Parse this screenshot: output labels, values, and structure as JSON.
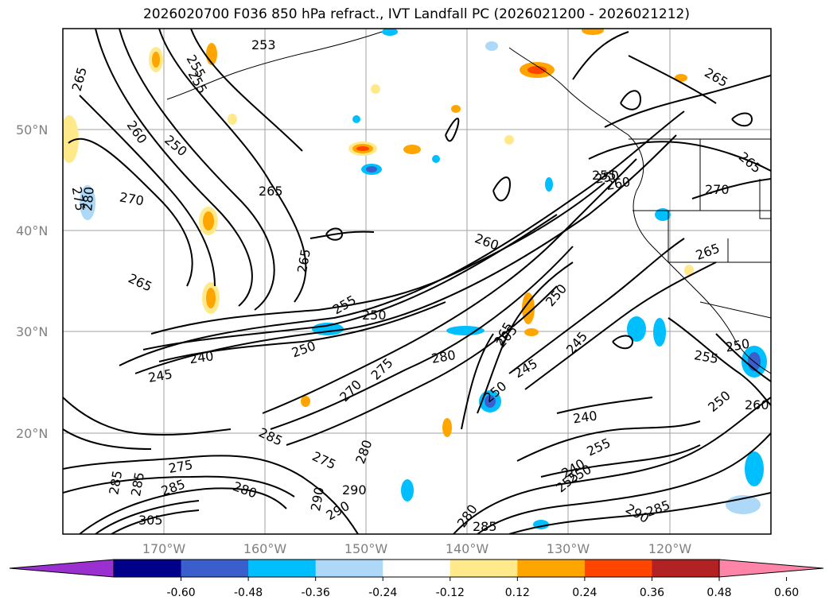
{
  "title": "2026020700 F036 850 hPa refract., IVT Landfall PC (2026021200 - 2026021212)",
  "lat_labels": [
    "50°N",
    "40°N",
    "30°N",
    "20°N"
  ],
  "lon_labels": [
    "170°W",
    "160°W",
    "150°W",
    "140°W",
    "130°W",
    "120°W"
  ],
  "colorbar": {
    "colors": [
      "#9b30d0",
      "#00008b",
      "#3a5fcd",
      "#00bfff",
      "#add8f7",
      "#ffffff",
      "#ffe98a",
      "#ffa500",
      "#ff4500",
      "#b22222",
      "#ff85a8"
    ],
    "tick_labels": [
      "-0.60",
      "-0.48",
      "-0.36",
      "-0.24",
      "-0.12",
      "0.12",
      "0.24",
      "0.36",
      "0.48",
      "0.60"
    ]
  },
  "contour_labels": [
    "253",
    "255",
    "265",
    "265",
    "260",
    "250",
    "255",
    "275",
    "280",
    "270",
    "250",
    "265",
    "265",
    "265",
    "240",
    "245",
    "240",
    "250",
    "255",
    "250",
    "250",
    "275",
    "270",
    "260",
    "255",
    "260",
    "270",
    "265",
    "265",
    "280",
    "265",
    "250",
    "245",
    "245",
    "250",
    "255",
    "250",
    "255",
    "260",
    "240",
    "255",
    "250",
    "285",
    "290",
    "285",
    "280",
    "285",
    "275",
    "275",
    "285",
    "305",
    "280",
    "285",
    "290",
    "290",
    "280",
    "285",
    "290",
    "265"
  ]
}
